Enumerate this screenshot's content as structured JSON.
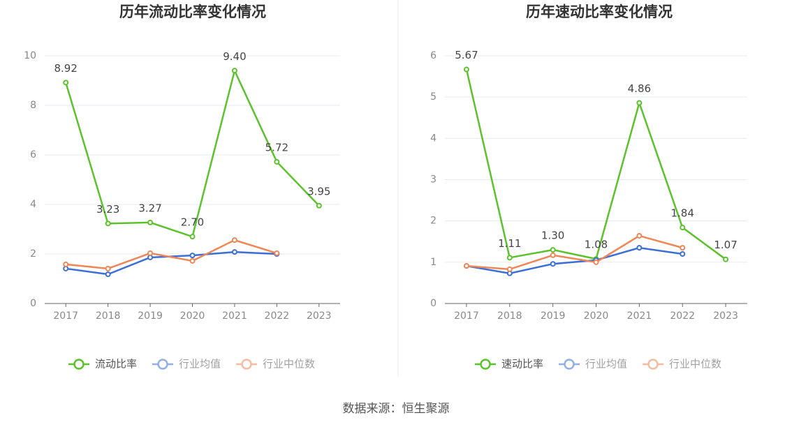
{
  "chart_data": [
    {
      "type": "line",
      "title": "历年流动比率变化情况",
      "categories": [
        "2017",
        "2018",
        "2019",
        "2020",
        "2021",
        "2022",
        "2023"
      ],
      "ylim": [
        0,
        10
      ],
      "yticks": [
        0,
        2,
        4,
        6,
        8,
        10
      ],
      "grid": true,
      "series": [
        {
          "name": "流动比率",
          "color": "#5cc22c",
          "values": [
            8.92,
            3.23,
            3.27,
            2.7,
            9.4,
            5.72,
            3.95
          ],
          "value_labels": [
            "8.92",
            "3.23",
            "3.27",
            "2.70",
            "9.40",
            "5.72",
            "3.95"
          ]
        },
        {
          "name": "行业均值",
          "color": "#3b6fd6",
          "values": [
            1.41,
            1.18,
            1.86,
            1.94,
            2.08,
            2.0,
            null
          ]
        },
        {
          "name": "行业中位数",
          "color": "#ef8656",
          "values": [
            1.58,
            1.41,
            2.03,
            1.72,
            2.56,
            2.03,
            null
          ]
        }
      ]
    },
    {
      "type": "line",
      "title": "历年速动比率变化情况",
      "categories": [
        "2017",
        "2018",
        "2019",
        "2020",
        "2021",
        "2022",
        "2023"
      ],
      "ylim": [
        0,
        6
      ],
      "yticks": [
        0,
        1,
        2,
        3,
        4,
        5,
        6
      ],
      "grid": true,
      "series": [
        {
          "name": "速动比率",
          "color": "#5cc22c",
          "values": [
            5.67,
            1.11,
            1.3,
            1.08,
            4.86,
            1.84,
            1.07
          ],
          "value_labels": [
            "5.67",
            "1.11",
            "1.30",
            "1.08",
            "4.86",
            "1.84",
            "1.07"
          ]
        },
        {
          "name": "行业均值",
          "color": "#3b6fd6",
          "values": [
            0.91,
            0.73,
            0.96,
            1.05,
            1.35,
            1.2,
            null
          ]
        },
        {
          "name": "行业中位数",
          "color": "#ef8656",
          "values": [
            0.91,
            0.83,
            1.17,
            1.0,
            1.64,
            1.35,
            null
          ]
        }
      ]
    }
  ],
  "source": "数据来源：恒生聚源"
}
